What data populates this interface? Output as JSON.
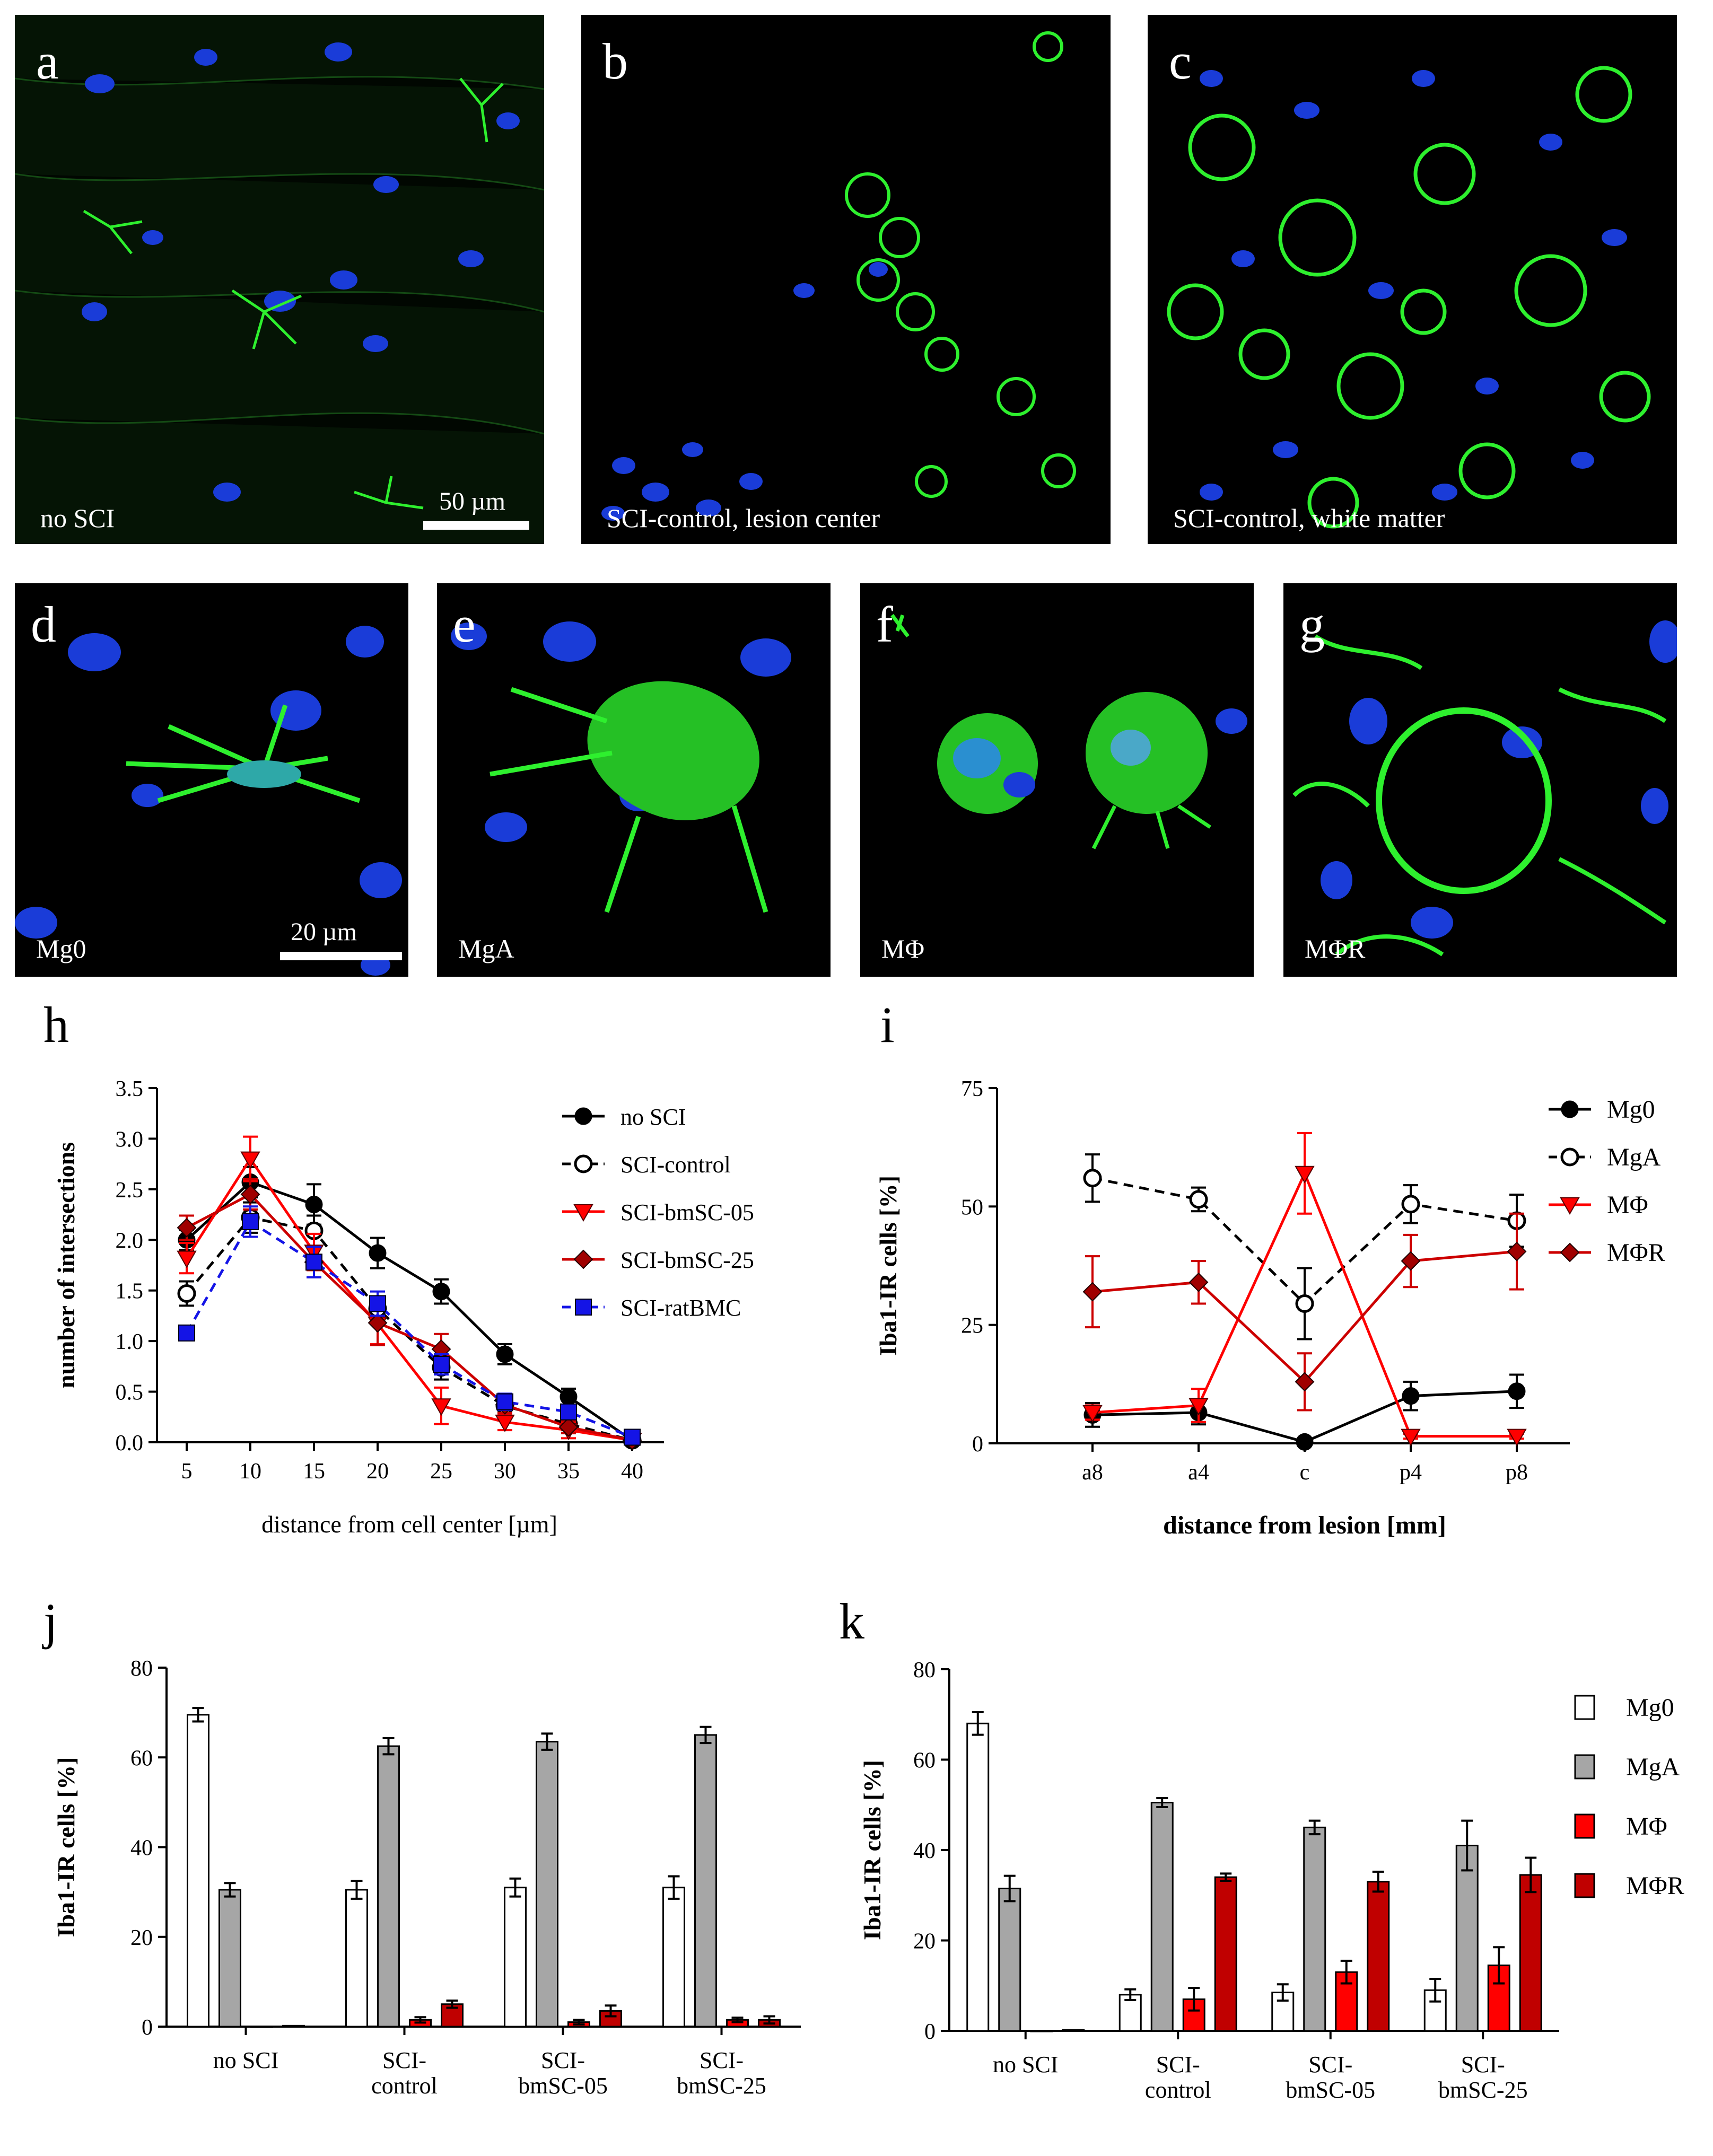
{
  "panels": {
    "a": {
      "letter": "a",
      "caption": "no SCI",
      "scalebar": "50 µm"
    },
    "b": {
      "letter": "b",
      "caption": "SCI-control, lesion center"
    },
    "c": {
      "letter": "c",
      "caption": "SCI-control, white matter"
    },
    "d": {
      "letter": "d",
      "caption": "Mg0",
      "scalebar": "20 µm"
    },
    "e": {
      "letter": "e",
      "caption": "MgA"
    },
    "f": {
      "letter": "f",
      "caption": "MΦ"
    },
    "g": {
      "letter": "g",
      "caption": "MΦR"
    }
  },
  "chart_data": [
    {
      "id": "h",
      "letter": "h",
      "type": "line",
      "xlabel": "distance from cell center [µm]",
      "ylabel": "number of intersections",
      "x": [
        5,
        10,
        15,
        20,
        25,
        30,
        35,
        40
      ],
      "xticks": [
        "5",
        "10",
        "15",
        "20",
        "25",
        "30",
        "35",
        "40"
      ],
      "ylim": [
        0,
        3.5
      ],
      "yticks": [
        "0.0",
        "0.5",
        "1.0",
        "1.5",
        "2.0",
        "2.5",
        "3.0",
        "3.5"
      ],
      "legend_position": "top-right",
      "series": [
        {
          "name": "no SCI",
          "color": "#000000",
          "marker": "circle-filled",
          "dash": false,
          "values": [
            2.0,
            2.57,
            2.35,
            1.87,
            1.49,
            0.87,
            0.45,
            0.02
          ],
          "err": [
            0.1,
            0.15,
            0.2,
            0.15,
            0.12,
            0.1,
            0.08,
            0.02
          ]
        },
        {
          "name": "SCI-control",
          "color": "#000000",
          "marker": "circle-open",
          "dash": true,
          "values": [
            1.47,
            2.22,
            2.09,
            1.32,
            0.74,
            0.36,
            0.18,
            0.02
          ],
          "err": [
            0.12,
            0.15,
            0.15,
            0.12,
            0.12,
            0.08,
            0.06,
            0.02
          ]
        },
        {
          "name": "SCI-bmSC-05",
          "color": "#ff0000",
          "marker": "triangle-down-red",
          "dash": false,
          "values": [
            1.82,
            2.8,
            1.88,
            1.17,
            0.36,
            0.2,
            0.12,
            0.02
          ],
          "err": [
            0.15,
            0.22,
            0.18,
            0.2,
            0.18,
            0.08,
            0.08,
            0.02
          ]
        },
        {
          "name": "SCI-bmSC-25",
          "color": "#cc0000",
          "marker": "diamond-darkred",
          "dash": false,
          "values": [
            2.12,
            2.45,
            1.78,
            1.18,
            0.92,
            0.37,
            0.15,
            0.02
          ],
          "err": [
            0.12,
            0.15,
            0.15,
            0.22,
            0.15,
            0.08,
            0.06,
            0.02
          ]
        },
        {
          "name": "SCI-ratBMC",
          "color": "#1414e6",
          "marker": "square-blue",
          "dash": true,
          "values": [
            1.08,
            2.18,
            1.78,
            1.37,
            0.77,
            0.4,
            0.3,
            0.05
          ],
          "err": [
            0.05,
            0.15,
            0.15,
            0.12,
            0.1,
            0.08,
            0.06,
            0.02
          ]
        }
      ]
    },
    {
      "id": "i",
      "letter": "i",
      "type": "line",
      "xlabel": "distance from lesion [mm]",
      "ylabel": "Iba1-IR cells [%]",
      "categories": [
        "a8",
        "a4",
        "c",
        "p4",
        "p8"
      ],
      "ylim": [
        0,
        75
      ],
      "yticks": [
        "0",
        "25",
        "50",
        "75"
      ],
      "legend_position": "top-right",
      "series": [
        {
          "name": "Mg0",
          "color": "#000000",
          "marker": "circle-filled",
          "dash": false,
          "values": [
            6,
            6.5,
            0.3,
            10,
            11
          ],
          "err": [
            2.5,
            2.5,
            0.5,
            3,
            3.5
          ]
        },
        {
          "name": "MgA",
          "color": "#000000",
          "marker": "circle-open",
          "dash": true,
          "values": [
            56,
            51.5,
            29.5,
            50.5,
            47
          ],
          "err": [
            5,
            2.5,
            7.5,
            4,
            5.5
          ]
        },
        {
          "name": "MΦ",
          "color": "#ff0000",
          "marker": "triangle-down-red",
          "dash": false,
          "values": [
            6.5,
            8,
            57,
            1.5,
            1.5
          ],
          "err": [
            1.5,
            3.5,
            8.5,
            0.5,
            0.5
          ]
        },
        {
          "name": "MΦR",
          "color": "#cc0000",
          "marker": "diamond-darkred",
          "dash": false,
          "values": [
            32,
            34,
            13,
            38.5,
            40.5
          ],
          "err": [
            7.5,
            4.5,
            6,
            5.5,
            8
          ]
        }
      ]
    },
    {
      "id": "j",
      "letter": "j",
      "type": "bar",
      "ylabel": "Iba1-IR cells [%]",
      "categories": [
        [
          "no SCI"
        ],
        [
          "SCI-",
          "control"
        ],
        [
          "SCI-",
          "bmSC-05"
        ],
        [
          "SCI-",
          "bmSC-25"
        ]
      ],
      "ylim": [
        0,
        80
      ],
      "yticks": [
        "0",
        "20",
        "40",
        "60",
        "80"
      ],
      "series": [
        {
          "name": "Mg0",
          "fill": "#ffffff",
          "values": [
            69.5,
            30.5,
            31,
            31
          ],
          "err": [
            1.5,
            2,
            2,
            2.5
          ]
        },
        {
          "name": "MgA",
          "fill": "#a6a6a6",
          "values": [
            30.5,
            62.5,
            63.5,
            65
          ],
          "err": [
            1.5,
            1.8,
            1.8,
            1.8
          ]
        },
        {
          "name": "MΦ",
          "fill": "#ff0000",
          "values": [
            0,
            1.5,
            1,
            1.5
          ],
          "err": [
            0,
            0.6,
            0.5,
            0.5
          ]
        },
        {
          "name": "MΦR",
          "fill": "#c00000",
          "values": [
            0.2,
            5,
            3.5,
            1.5
          ],
          "err": [
            0,
            0.8,
            1.2,
            0.8
          ]
        }
      ]
    },
    {
      "id": "k",
      "letter": "k",
      "type": "bar",
      "ylabel": "Iba1-IR cells [%]",
      "categories": [
        [
          "no SCI"
        ],
        [
          "SCI-",
          "control"
        ],
        [
          "SCI-",
          "bmSC-05"
        ],
        [
          "SCI-",
          "bmSC-25"
        ]
      ],
      "ylim": [
        0,
        80
      ],
      "yticks": [
        "0",
        "20",
        "40",
        "60",
        "80"
      ],
      "legend_position": "right",
      "series": [
        {
          "name": "Mg0",
          "fill": "#ffffff",
          "values": [
            68,
            8,
            8.5,
            9
          ],
          "err": [
            2.5,
            1.2,
            1.8,
            2.5
          ]
        },
        {
          "name": "MgA",
          "fill": "#a6a6a6",
          "values": [
            31.5,
            50.5,
            45,
            41
          ],
          "err": [
            2.8,
            1,
            1.5,
            5.5
          ]
        },
        {
          "name": "MΦ",
          "fill": "#ff0000",
          "values": [
            0,
            7,
            13,
            14.5
          ],
          "err": [
            0,
            2.5,
            2.5,
            4
          ]
        },
        {
          "name": "MΦR",
          "fill": "#c00000",
          "values": [
            0.2,
            34,
            33,
            34.5
          ],
          "err": [
            0,
            0.8,
            2.2,
            3.8
          ]
        }
      ]
    }
  ]
}
